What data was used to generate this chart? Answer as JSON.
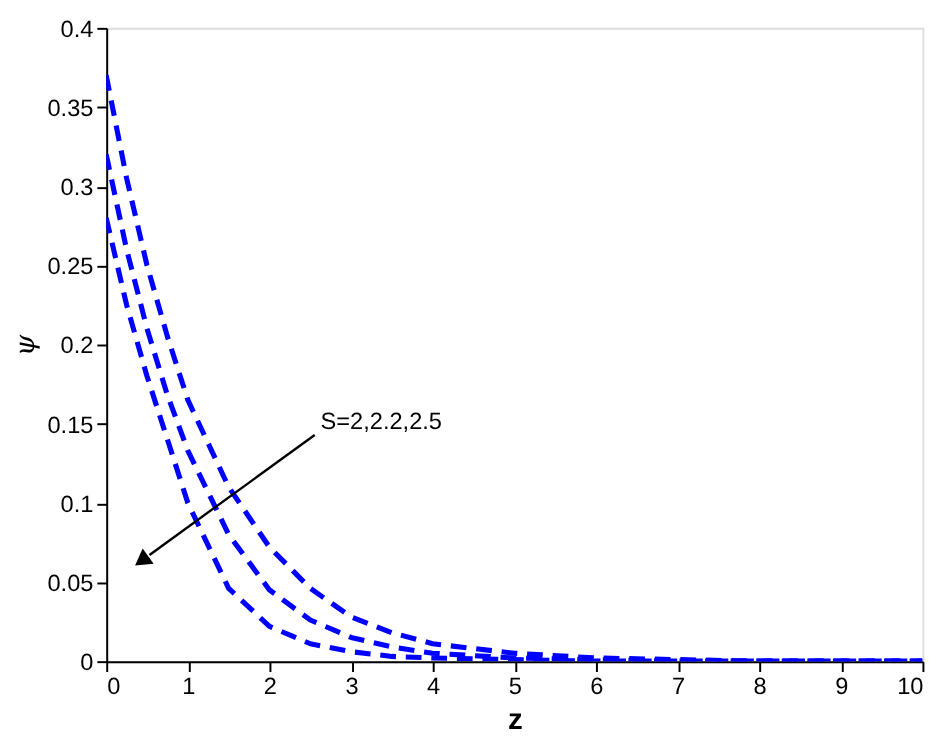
{
  "chart_data": {
    "type": "line",
    "xlabel": "z",
    "ylabel": "ψ",
    "x": [
      0,
      0.25,
      0.5,
      0.75,
      1,
      1.5,
      2,
      2.5,
      3,
      3.5,
      4,
      5,
      6,
      7,
      8,
      10
    ],
    "series": [
      {
        "color": "#0000ff",
        "values": [
          0.37,
          0.305,
          0.25,
          0.205,
          0.165,
          0.11,
          0.072,
          0.046,
          0.028,
          0.018,
          0.011,
          0.005,
          0.002,
          0.001,
          0,
          0
        ]
      },
      {
        "color": "#0000ff",
        "values": [
          0.32,
          0.26,
          0.21,
          0.168,
          0.133,
          0.08,
          0.045,
          0.026,
          0.015,
          0.009,
          0.005,
          0.002,
          0.001,
          0,
          0,
          0
        ]
      },
      {
        "color": "#0000ff",
        "values": [
          0.28,
          0.225,
          0.18,
          0.14,
          0.1,
          0.046,
          0.022,
          0.011,
          0.006,
          0.003,
          0.002,
          0.001,
          0,
          0,
          0,
          0
        ]
      }
    ],
    "line_style": "dashed",
    "xlim": [
      0,
      10
    ],
    "xticks": [
      0,
      1,
      2,
      3,
      4,
      5,
      6,
      7,
      8,
      9,
      10
    ],
    "ylim": [
      0,
      0.4
    ],
    "yticks": [
      0,
      0.05,
      0.1,
      0.15,
      0.2,
      0.25,
      0.3,
      0.35,
      0.4
    ],
    "grid": false,
    "annotations": [
      "S=2,2.2,2.5"
    ]
  }
}
